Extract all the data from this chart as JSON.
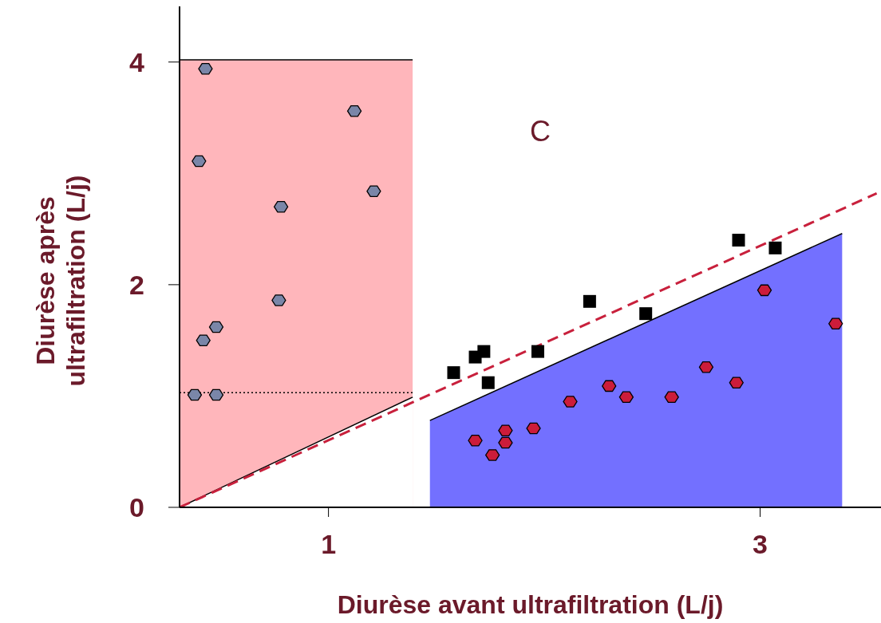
{
  "chart_data": {
    "type": "scatter",
    "xlabel": "Diurèse avant ultrafiltration (L/j)",
    "ylabel": "Diurèse après ultrafiltration (L/j)",
    "xlim": [
      0.31,
      3.56
    ],
    "ylim": [
      0,
      4.5
    ],
    "xticks": [
      1,
      3
    ],
    "yticks": [
      0,
      2,
      4
    ],
    "grid": false,
    "legend": false,
    "annotations": [
      "C"
    ],
    "series": [
      {
        "type": "area",
        "color": "#ffb6bb",
        "x": [
          0.31,
          1.39
        ],
        "values": [
          4.02,
          4.02
        ]
      },
      {
        "type": "area",
        "color": "#ffffff",
        "x": [
          0.31,
          1.39
        ],
        "values": [
          0,
          0.99
        ]
      },
      {
        "type": "area",
        "color": "#7370ff",
        "x": [
          1.47,
          3.38
        ],
        "values": [
          0.78,
          2.46
        ]
      },
      {
        "type": "line",
        "color": "#000000",
        "line_style": "dotted",
        "marker": "none",
        "x": [
          0.31,
          1.39
        ],
        "values": [
          1.03,
          1.03
        ]
      },
      {
        "type": "line",
        "color": "#c8203c",
        "line_style": "dashed",
        "marker": "none",
        "x": [
          0.31,
          3.54
        ],
        "values": [
          0,
          2.82
        ]
      },
      {
        "color": "#7a86a8",
        "x": [
          0.43,
          1.12,
          0.4,
          1.21,
          0.78,
          0.77,
          0.48,
          0.42,
          0.38,
          0.48
        ],
        "values": [
          3.94,
          3.56,
          3.11,
          2.84,
          2.7,
          1.86,
          1.62,
          1.5,
          1.01,
          1.01
        ]
      },
      {
        "color": "#000000",
        "marker": "square",
        "x": [
          1.58,
          1.68,
          1.72,
          1.74,
          1.97,
          2.21,
          2.47,
          2.9,
          3.07
        ],
        "values": [
          1.21,
          1.35,
          1.4,
          1.12,
          1.4,
          1.85,
          1.74,
          2.4,
          2.33
        ]
      },
      {
        "color": "#cc1c3a",
        "x": [
          1.68,
          1.76,
          1.82,
          1.82,
          1.95,
          2.12,
          2.3,
          2.38,
          2.59,
          2.75,
          2.89,
          3.02,
          3.35
        ],
        "values": [
          0.6,
          0.47,
          0.69,
          0.58,
          0.71,
          0.95,
          1.09,
          0.99,
          0.99,
          1.26,
          1.12,
          1.95,
          1.65
        ]
      }
    ]
  }
}
